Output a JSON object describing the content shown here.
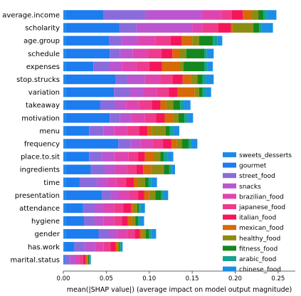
{
  "chart_data": {
    "type": "bar",
    "orientation": "horizontal",
    "stacked": true,
    "xlabel": "mean(|SHAP value|) (average impact on model output magnitude)",
    "ylabel": "",
    "xlim": [
      0,
      0.27
    ],
    "xticks": [
      "0.00",
      "0.05",
      "0.10",
      "0.15",
      "0.20",
      "0.25"
    ],
    "grid": false,
    "legend_position": "lower-right",
    "categories": [
      "average.income",
      "scholarity",
      "age.group",
      "schedule",
      "expenses",
      "stop.strucks",
      "variation",
      "takeaway",
      "motivation",
      "menu",
      "frequency",
      "place.to.sit",
      "ingredients",
      "time",
      "presentation",
      "attendance",
      "hygiene",
      "gender",
      "has.work",
      "marital.status"
    ],
    "series": [
      {
        "name": "sweets_desserts",
        "color": "#1f8be6",
        "values": [
          0.003,
          0.003,
          0.003,
          0.003,
          0.003,
          0.003,
          0.003,
          0.003,
          0.003,
          0.003,
          0.003,
          0.003,
          0.003,
          0.003,
          0.003,
          0.003,
          0.003,
          0.003,
          0.002,
          0.001
        ]
      },
      {
        "name": "gourmet",
        "color": "#1c7cf0",
        "values": [
          0.044,
          0.062,
          0.05,
          0.051,
          0.032,
          0.058,
          0.056,
          0.04,
          0.051,
          0.027,
          0.061,
          0.027,
          0.029,
          0.016,
          0.042,
          0.02,
          0.021,
          0.038,
          0.011,
          0.001
        ]
      },
      {
        "name": "street_food",
        "color": "#8a6bdc",
        "values": [
          0.049,
          0.02,
          0.015,
          0.012,
          0.018,
          0.014,
          0.018,
          0.017,
          0.012,
          0.017,
          0.014,
          0.015,
          0.016,
          0.02,
          0.01,
          0.013,
          0.012,
          0.012,
          0.012,
          0.006
        ]
      },
      {
        "name": "snacks",
        "color": "#bb55d0",
        "values": [
          0.065,
          0.065,
          0.019,
          0.015,
          0.015,
          0.02,
          0.017,
          0.013,
          0.013,
          0.012,
          0.012,
          0.014,
          0.012,
          0.012,
          0.01,
          0.01,
          0.011,
          0.01,
          0.012,
          0.006
        ]
      },
      {
        "name": "brazilian_food",
        "color": "#df45b0",
        "values": [
          0.023,
          0.012,
          0.02,
          0.018,
          0.017,
          0.018,
          0.015,
          0.015,
          0.016,
          0.015,
          0.014,
          0.017,
          0.014,
          0.011,
          0.012,
          0.013,
          0.012,
          0.011,
          0.01,
          0.005
        ]
      },
      {
        "name": "japanese_food",
        "color": "#ee3b8e",
        "values": [
          0.012,
          0.018,
          0.018,
          0.015,
          0.015,
          0.014,
          0.014,
          0.015,
          0.013,
          0.014,
          0.012,
          0.011,
          0.011,
          0.011,
          0.01,
          0.011,
          0.009,
          0.009,
          0.008,
          0.004
        ]
      },
      {
        "name": "italian_food",
        "color": "#f5165a",
        "values": [
          0.013,
          0.015,
          0.013,
          0.013,
          0.015,
          0.012,
          0.01,
          0.01,
          0.01,
          0.01,
          0.01,
          0.008,
          0.008,
          0.009,
          0.007,
          0.009,
          0.007,
          0.006,
          0.006,
          0.003
        ]
      },
      {
        "name": "mexican_food",
        "color": "#d66a06",
        "values": [
          0.01,
          0.002,
          0.012,
          0.008,
          0.02,
          0.01,
          0.02,
          0.007,
          0.01,
          0.005,
          0.006,
          0.011,
          0.009,
          0.005,
          0.006,
          0.003,
          0.005,
          0.003,
          0.002,
          0.002
        ]
      },
      {
        "name": "healthy_food",
        "color": "#8c8c12",
        "values": [
          0.008,
          0.024,
          0.008,
          0.008,
          0.005,
          0.007,
          0.005,
          0.008,
          0.006,
          0.016,
          0.006,
          0.007,
          0.015,
          0.008,
          0.007,
          0.004,
          0.004,
          0.004,
          0.002,
          0.001
        ]
      },
      {
        "name": "fitness_food",
        "color": "#14881e",
        "values": [
          0.006,
          0.007,
          0.016,
          0.021,
          0.024,
          0.006,
          0.004,
          0.008,
          0.007,
          0.005,
          0.008,
          0.004,
          0.006,
          0.004,
          0.007,
          0.002,
          0.003,
          0.004,
          0.001,
          0.001
        ]
      },
      {
        "name": "arabic_food",
        "color": "#16a38e",
        "values": [
          0.004,
          0.003,
          0.005,
          0.003,
          0.004,
          0.004,
          0.004,
          0.004,
          0.004,
          0.004,
          0.003,
          0.004,
          0.003,
          0.003,
          0.002,
          0.002,
          0.002,
          0.002,
          0.001,
          0.001
        ]
      },
      {
        "name": "chinese_food",
        "color": "#1b8fe6",
        "values": [
          0.011,
          0.013,
          0.006,
          0.008,
          0.006,
          0.009,
          0.006,
          0.008,
          0.006,
          0.007,
          0.007,
          0.007,
          0.004,
          0.007,
          0.006,
          0.005,
          0.005,
          0.006,
          0.002,
          0.001
        ]
      }
    ]
  }
}
